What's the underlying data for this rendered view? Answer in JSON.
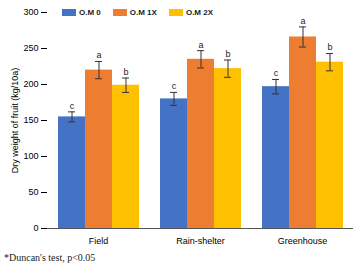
{
  "chart_data": {
    "type": "bar",
    "y_label": "Dry weight of fruit (kg/10a)",
    "caption": "*Duncan's test,  p<0.05",
    "categories": [
      "Field",
      "Rain-shelter",
      "Greenhouse"
    ],
    "series": [
      {
        "name": "O.M 0",
        "color": "#4472c4",
        "values": [
          155,
          180,
          197
        ],
        "errors": [
          7,
          9,
          10
        ],
        "significance": [
          "c",
          "c",
          "c"
        ]
      },
      {
        "name": "O.M 1X",
        "color": "#ed7d31",
        "values": [
          220,
          235,
          266
        ],
        "errors": [
          12,
          12,
          14
        ],
        "significance": [
          "a",
          "a",
          "a"
        ]
      },
      {
        "name": "O.M 2X",
        "color": "#ffc000",
        "values": [
          199,
          222,
          231
        ],
        "errors": [
          10,
          12,
          12
        ],
        "significance": [
          "b",
          "b",
          "b"
        ]
      }
    ],
    "ylim": [
      0,
      300
    ],
    "yticks": [
      0,
      50,
      100,
      150,
      200,
      250,
      300
    ],
    "grid": false,
    "legend": "top-left"
  }
}
